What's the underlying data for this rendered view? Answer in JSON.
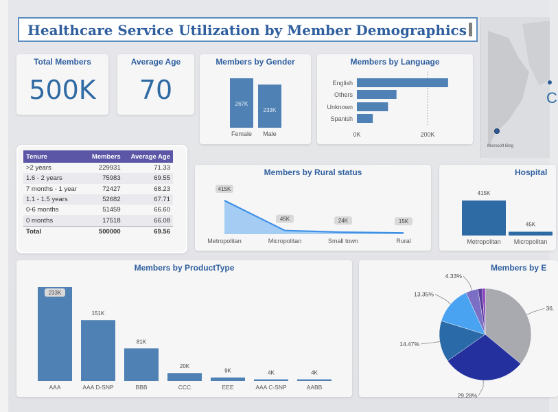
{
  "title": "Healthcare Service Utilization by Member Demographics",
  "kpis": {
    "total_members": {
      "label": "Total Members",
      "value": "500K"
    },
    "average_age": {
      "label": "Average Age",
      "value": "70"
    }
  },
  "map": {
    "attribution": "Microsoft Bing"
  },
  "tenure_table": {
    "headers": [
      "Tenure",
      "Members",
      "Average Age"
    ],
    "rows": [
      [
        ">2 years",
        "229931",
        "71.33"
      ],
      [
        "1.6 - 2 years",
        "75983",
        "69.55"
      ],
      [
        "7 months - 1 year",
        "72427",
        "68.23"
      ],
      [
        "1.1 - 1.5 years",
        "52682",
        "67.71"
      ],
      [
        "0-6 months",
        "51459",
        "66.60"
      ],
      [
        "0 months",
        "17518",
        "66.08"
      ]
    ],
    "total": [
      "Total",
      "500000",
      "69.56"
    ]
  },
  "colors": {
    "bar": "#4f81b4",
    "dark_bar": "#2e6aa3",
    "line": "#3d8fe6",
    "area": "#9cc9f3",
    "title": "#2f5f9e",
    "table_header": "#5b57a6"
  },
  "chart_data": [
    {
      "id": "gender",
      "type": "bar",
      "title": "Members by Gender",
      "categories": [
        "Female",
        "Male"
      ],
      "values": [
        267000,
        233000
      ],
      "labels": [
        "267K",
        "233K"
      ]
    },
    {
      "id": "language",
      "type": "bar",
      "orientation": "horizontal",
      "title": "Members by Language",
      "categories": [
        "English",
        "Others",
        "Unknown",
        "Spanish"
      ],
      "values": [
        258000,
        112000,
        88000,
        45000
      ],
      "xticks": [
        "0K",
        "200K"
      ],
      "xlim": [
        0,
        270000
      ]
    },
    {
      "id": "rural",
      "type": "area",
      "title": "Members by Rural status",
      "categories": [
        "Metropolitan",
        "Micropolitan",
        "Small town",
        "Rural"
      ],
      "values": [
        415000,
        45000,
        24000,
        15000
      ],
      "labels": [
        "415K",
        "45K",
        "24K",
        "15K"
      ]
    },
    {
      "id": "hospital",
      "type": "bar",
      "title": "Hospital",
      "categories": [
        "Metropolitan",
        "Micropolitan"
      ],
      "values": [
        415000,
        45000
      ],
      "labels": [
        "415K",
        "45K"
      ]
    },
    {
      "id": "product",
      "type": "bar",
      "title": "Members by ProductType",
      "categories": [
        "AAA",
        "AAA D-SNP",
        "BBB",
        "CCC",
        "EEE",
        "AAA C-SNP",
        "AABB"
      ],
      "values": [
        233000,
        151000,
        81000,
        20000,
        9000,
        4000,
        4000
      ],
      "labels": [
        "233K",
        "151K",
        "81K",
        "20K",
        "9K",
        "4K",
        "4K"
      ]
    },
    {
      "id": "pie",
      "type": "pie",
      "title": "Members by E",
      "values": [
        36.0,
        29.28,
        14.47,
        13.35,
        4.33,
        1.5,
        1.07
      ],
      "labels": [
        "36.",
        "29.28%",
        "14.47%",
        "13.35%",
        "4.33%",
        "",
        ""
      ],
      "colors": [
        "#a9a9b0",
        "#24309e",
        "#2a6aa8",
        "#4aa3f0",
        "#7a6fc4",
        "#5a3ea0",
        "#8b3fc0"
      ]
    }
  ]
}
